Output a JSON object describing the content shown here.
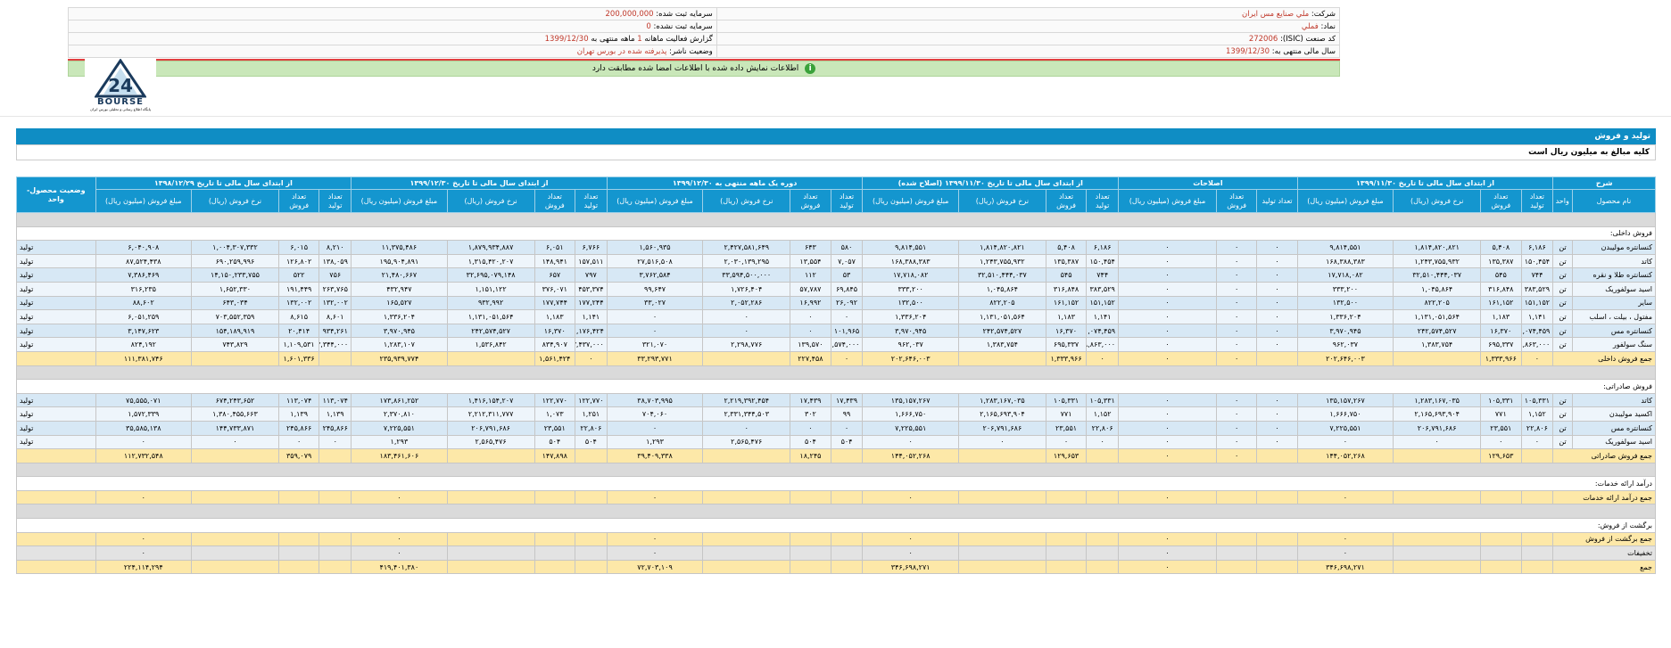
{
  "header": {
    "company_label": "شرکت:",
    "company_value": "ملي صنايع مس ايران",
    "capital_reg_label": "سرمایه ثبت شده:",
    "capital_reg_value": "200,000,000",
    "capital_unreg_label": "سرمایه ثبت نشده:",
    "capital_unreg_value": "0",
    "status_label": "وضعیت ناشر:",
    "status_value": "پذیرفته شده در بورس تهران",
    "isic_label": "کد صنعت (ISIC):",
    "isic_value": "272006",
    "report_label_a": "گزارش فعالیت ماهانه",
    "report_period": "1",
    "report_label_b": "ماهه منتهی به",
    "report_date": "1399/12/30",
    "symbol_label": "نماد:",
    "symbol_value": "فملي",
    "fiscal_label": "سال مالی منتهی به:",
    "fiscal_value": "1399/12/30"
  },
  "notice": {
    "text": "اطلاعات نمایش داده شده با اطلاعات امضا شده مطابقت دارد"
  },
  "logo": {
    "brand": "BOURSE",
    "tagline": "پایگاه اطلاع رسانی و تحلیلی بورس ایران",
    "mark": "24"
  },
  "section_title": "تولید و فروش",
  "amount_note": "کلیه مبالغ به میلیون ریال است",
  "table": {
    "col_desc": "شرح",
    "col_name": "نام محصول",
    "col_unit": "واحد",
    "col_status": "وضعیت محصول-واحد",
    "groups": [
      "از ابتدای سال مالی تا تاریخ ۱۳۹۹/۱۱/۳۰",
      "اصلاحات",
      "از ابتدای سال مالی تا تاریخ ۱۳۹۹/۱۱/۳۰ (اصلاح شده)",
      "دوره یک ماهه منتهی به ۱۳۹۹/۱۲/۳۰",
      "از ابتدای سال مالی تا تاریخ ۱۳۹۹/۱۲/۳۰",
      "از ابتدای سال مالی تا تاریخ ۱۳۹۸/۱۲/۲۹"
    ],
    "sub4": [
      "تعداد تولید",
      "تعداد فروش",
      "نرخ فروش (ریال)",
      "مبلغ فروش (میلیون ریال)"
    ],
    "sub3": [
      "تعداد تولید",
      "تعداد فروش",
      "مبلغ فروش (میلیون ریال)"
    ],
    "sec_domestic": "فروش داخلی:",
    "domestic": [
      {
        "name": "کنسانتره مولیبدن",
        "unit": "تن",
        "v": [
          "۶,۱۸۶",
          "۵,۴۰۸",
          "۱,۸۱۴,۸۲۰,۸۲۱",
          "۹,۸۱۴,۵۵۱",
          "۰",
          "۰",
          "۰",
          "۶,۱۸۶",
          "۵,۴۰۸",
          "۱,۸۱۴,۸۲۰,۸۲۱",
          "۹,۸۱۴,۵۵۱",
          "۵۸۰",
          "۶۴۳",
          "۲,۴۲۷,۵۸۱,۶۴۹",
          "۱,۵۶۰,۹۳۵",
          "۶,۷۶۶",
          "۶,۰۵۱",
          "۱,۸۷۹,۹۳۴,۸۸۷",
          "۱۱,۳۷۵,۴۸۶",
          "۸,۲۱۰",
          "۶,۰۱۵",
          "۱,۰۰۴,۳۰۷,۳۳۲",
          "۶,۰۴۰,۹۰۸"
        ],
        "status": "تولید"
      },
      {
        "name": "کاتد",
        "unit": "تن",
        "v": [
          "۱۵۰,۴۵۴",
          "۱۳۵,۳۸۷",
          "۱,۲۴۳,۷۵۵,۹۳۲",
          "۱۶۸,۳۸۸,۳۸۳",
          "۰",
          "۰",
          "۰",
          "۱۵۰,۴۵۴",
          "۱۳۵,۳۸۷",
          "۱,۲۴۳,۷۵۵,۹۳۲",
          "۱۶۸,۳۸۸,۳۸۳",
          "۷,۰۵۷",
          "۱۳,۵۵۴",
          "۲,۰۳۰,۱۳۹,۲۹۵",
          "۲۷,۵۱۶,۵۰۸",
          "۱۵۷,۵۱۱",
          "۱۴۸,۹۴۱",
          "۱,۳۱۵,۴۲۰,۲۰۷",
          "۱۹۵,۹۰۴,۸۹۱",
          "۱۳۸,۰۵۹",
          "۱۲۶,۸۰۲",
          "۶۹۰,۲۵۹,۹۹۶",
          "۸۷,۵۲۴,۴۳۸"
        ],
        "status": "تولید"
      },
      {
        "name": "کنسانتره طلا و نقره",
        "unit": "تن",
        "v": [
          "۷۴۴",
          "۵۴۵",
          "۳۲,۵۱۰,۴۴۴,۰۳۷",
          "۱۷,۷۱۸,۰۸۲",
          "۰",
          "۰",
          "۰",
          "۷۴۴",
          "۵۴۵",
          "۳۲,۵۱۰,۴۴۴,۰۳۷",
          "۱۷,۷۱۸,۰۸۲",
          "۵۳",
          "۱۱۲",
          "۳۳,۵۹۴,۵۰۰,۰۰۰",
          "۳,۷۶۲,۵۸۴",
          "۷۹۷",
          "۶۵۷",
          "۳۲,۶۹۵,۰۷۹,۱۴۸",
          "۲۱,۴۸۰,۶۶۷",
          "۷۵۶",
          "۵۲۲",
          "۱۴,۱۵۰,۲۳۳,۷۵۵",
          "۷,۳۸۶,۴۶۹"
        ],
        "status": "تولید"
      },
      {
        "name": "اسید سولفوریک",
        "unit": "تن",
        "v": [
          "۳۸۳,۵۲۹",
          "۳۱۶,۸۴۸",
          "۱,۰۴۵,۸۶۴",
          "۳۳۳,۲۰۰",
          "۰",
          "۰",
          "۰",
          "۳۸۳,۵۲۹",
          "۳۱۶,۸۴۸",
          "۱,۰۴۵,۸۶۴",
          "۳۳۳,۲۰۰",
          "۶۹,۸۴۵",
          "۵۷,۷۸۷",
          "۱,۷۲۶,۴۰۴",
          "۹۹,۶۴۷",
          "۴۵۳,۳۷۴",
          "۳۷۶,۰۷۱",
          "۱,۱۵۱,۱۲۲",
          "۴۳۲,۹۴۷",
          "۲۶۳,۷۶۵",
          "۱۹۱,۴۴۹",
          "۱,۶۵۲,۳۳۰",
          "۳۱۶,۲۳۵"
        ],
        "status": "تولید"
      },
      {
        "name": "سایر",
        "unit": "تن",
        "v": [
          "۱۵۱,۱۵۲",
          "۱۶۱,۱۵۲",
          "۸۲۲,۲۰۵",
          "۱۳۲,۵۰۰",
          "۰",
          "۰",
          "۰",
          "۱۵۱,۱۵۲",
          "۱۶۱,۱۵۲",
          "۸۲۲,۲۰۵",
          "۱۳۲,۵۰۰",
          "۲۶,۰۹۲",
          "۱۶,۹۹۲",
          "۲,۰۵۲,۲۸۶",
          "۳۳,۰۲۷",
          "۱۷۷,۲۴۴",
          "۱۷۷,۷۴۴",
          "۹۳۲,۹۹۲",
          "۱۶۵,۵۲۷",
          "۱۳۲,۰۰۲",
          "۱۳۲,۰۰۲",
          "۶۴۳,۰۳۴",
          "۸۸,۶۰۲"
        ],
        "status": "تولید"
      },
      {
        "name": "مفتول ، بیلت ، اسلب",
        "unit": "تن",
        "v": [
          "۱,۱۴۱",
          "۱,۱۸۳",
          "۱,۱۳۱,۰۵۱,۵۶۴",
          "۱,۳۳۶,۲۰۴",
          "۰",
          "۰",
          "۰",
          "۱,۱۴۱",
          "۱,۱۸۳",
          "۱,۱۳۱,۰۵۱,۵۶۴",
          "۱,۳۳۶,۲۰۴",
          "۰",
          "۰",
          "۰",
          "۰",
          "۱,۱۴۱",
          "۱,۱۸۳",
          "۱,۱۳۱,۰۵۱,۵۶۴",
          "۱,۳۳۶,۲۰۴",
          "۸,۶۰۱",
          "۸,۶۱۵",
          "۷۰۳,۵۵۲,۳۵۹",
          "۶,۰۵۱,۲۵۹"
        ],
        "status": "تولید"
      },
      {
        "name": "کنسانتره مس",
        "unit": "تن",
        "v": [
          "۱,۰۷۴,۴۵۹",
          "۱۶,۳۷۰",
          "۲۴۲,۵۷۴,۵۲۷",
          "۳,۹۷۰,۹۴۵",
          "۰",
          "۰",
          "۰",
          "۱,۰۷۴,۴۵۹",
          "۱۶,۳۷۰",
          "۲۴۲,۵۷۴,۵۲۷",
          "۳,۹۷۰,۹۴۵",
          "۱۰۱,۹۶۵",
          "۰",
          "۰",
          "۰",
          "۱,۱۷۶,۴۲۴",
          "۱۶,۳۷۰",
          "۲۴۲,۵۷۴,۵۲۷",
          "۳,۹۷۰,۹۴۵",
          "۹۳۴,۲۶۱",
          "۲۰,۴۱۴",
          "۱۵۴,۱۸۹,۹۱۹",
          "۳,۱۴۷,۶۲۳"
        ],
        "status": "تولید"
      },
      {
        "name": "سنگ سولفور",
        "unit": "تن",
        "v": [
          "۴۸,۸۶۳,۰۰۰",
          "۶۹۵,۳۳۷",
          "۱,۳۸۳,۷۵۴",
          "۹۶۲,۰۳۷",
          "۰",
          "۰",
          "۰",
          "۴۸,۸۶۳,۰۰۰",
          "۶۹۵,۳۳۷",
          "۱,۳۸۳,۷۵۴",
          "۹۶۲,۰۳۷",
          "۴,۵۷۴,۰۰۰",
          "۱۳۹,۵۷۰",
          "۲,۲۹۸,۷۷۶",
          "۳۲۱,۰۷۰",
          "۵۳,۴۳۷,۰۰۰",
          "۸۳۴,۹۰۷",
          "۱,۵۳۶,۸۴۲",
          "۱,۲۸۳,۱۰۷",
          "۵۳,۳۴۴,۰۰۰",
          "۱,۱۰۹,۵۳۱",
          "۷۴۳,۸۲۹",
          "۸۲۴,۱۹۲"
        ],
        "status": "تولید"
      }
    ],
    "tot_domestic": {
      "label": "جمع فروش داخلی",
      "v": [
        "۰",
        "۱,۳۳۳,۹۶۶",
        "",
        "۲۰۲,۶۴۶,۰۰۳",
        "",
        "۰",
        "۰",
        "۰",
        "۱,۳۳۳,۹۶۶",
        "",
        "۲۰۲,۶۴۶,۰۰۳",
        "۰",
        "۲۲۷,۴۵۸",
        "",
        "۳۳,۲۹۳,۷۷۱",
        "۰",
        "۱,۵۶۱,۴۲۴",
        "",
        "۲۳۵,۹۳۹,۷۷۴",
        "",
        "۱,۶۰۱,۳۳۶",
        "",
        "۱۱۱,۳۸۱,۷۴۶"
      ]
    },
    "sec_export": "فروش صادراتی:",
    "export": [
      {
        "name": "کاتد",
        "unit": "تن",
        "v": [
          "۱۰۵,۳۳۱",
          "۱۰۵,۳۳۱",
          "۱,۲۸۳,۱۶۷,۰۳۵",
          "۱۳۵,۱۵۷,۲۶۷",
          "۰",
          "۰",
          "۰",
          "۱۰۵,۳۳۱",
          "۱۰۵,۳۳۱",
          "۱,۲۸۳,۱۶۷,۰۳۵",
          "۱۳۵,۱۵۷,۲۶۷",
          "۱۷,۴۳۹",
          "۱۷,۴۳۹",
          "۲,۲۱۹,۳۹۲,۴۵۴",
          "۳۸,۷۰۳,۹۹۵",
          "۱۲۲,۷۷۰",
          "۱۲۲,۷۷۰",
          "۱,۴۱۶,۱۵۴,۲۰۷",
          "۱۷۳,۸۶۱,۲۵۲",
          "۱۱۳,۰۷۴",
          "۱۱۳,۰۷۴",
          "۶۷۴,۲۴۳,۶۵۲",
          "۷۵,۵۵۵,۰۷۱"
        ],
        "status": "تولید"
      },
      {
        "name": "اکسید مولیبدن",
        "unit": "تن",
        "v": [
          "۱,۱۵۲",
          "۷۷۱",
          "۲,۱۶۵,۶۹۳,۹۰۴",
          "۱,۶۶۶,۷۵۰",
          "۰",
          "۰",
          "۰",
          "۱,۱۵۲",
          "۷۷۱",
          "۲,۱۶۵,۶۹۳,۹۰۴",
          "۱,۶۶۶,۷۵۰",
          "۹۹",
          "۳۰۲",
          "۲,۳۳۱,۳۴۴,۵۰۳",
          "۷۰۴,۰۶۰",
          "۱,۲۵۱",
          "۱,۰۷۳",
          "۲,۲۱۲,۳۱۱,۷۷۷",
          "۲,۳۷۰,۸۱۰",
          "۱,۱۳۹",
          "۱,۱۳۹",
          "۱,۳۸۰,۴۵۵,۶۶۳",
          "۱,۵۷۲,۳۳۹"
        ],
        "status": "تولید"
      },
      {
        "name": "کنسانتره مس",
        "unit": "تن",
        "v": [
          "۲۲,۸۰۶",
          "۲۳,۵۵۱",
          "۲۰۶,۷۹۱,۶۸۶",
          "۷,۲۲۵,۵۵۱",
          "۰",
          "۰",
          "۰",
          "۲۲,۸۰۶",
          "۲۳,۵۵۱",
          "۲۰۶,۷۹۱,۶۸۶",
          "۷,۲۲۵,۵۵۱",
          "۰",
          "۰",
          "۰",
          "۰",
          "۲۲,۸۰۶",
          "۲۳,۵۵۱",
          "۲۰۶,۷۹۱,۶۸۶",
          "۷,۲۲۵,۵۵۱",
          "۲۴۵,۸۶۶",
          "۲۴۵,۸۶۶",
          "۱۴۴,۷۳۳,۸۷۱",
          "۳۵,۵۸۵,۱۳۸"
        ],
        "status": "تولید"
      },
      {
        "name": "اسید سولفوریک",
        "unit": "تن",
        "v": [
          "۰",
          "۰",
          "۰",
          "۰",
          "۰",
          "۰",
          "۰",
          "۰",
          "۰",
          "۰",
          "۰",
          "۵۰۴",
          "۵۰۴",
          "۲,۵۶۵,۴۷۶",
          "۱,۲۹۳",
          "۵۰۴",
          "۵۰۴",
          "۲,۵۶۵,۴۷۶",
          "۱,۲۹۳",
          "۰",
          "۰",
          "۰",
          "۰"
        ],
        "status": "تولید"
      }
    ],
    "tot_export": {
      "label": "جمع فروش صادراتی",
      "v": [
        "",
        "۱۲۹,۶۵۳",
        "",
        "۱۴۴,۰۵۲,۲۶۸",
        "",
        "۰",
        "۰",
        "",
        "۱۲۹,۶۵۳",
        "",
        "۱۴۴,۰۵۲,۲۶۸",
        "",
        "۱۸,۲۴۵",
        "",
        "۳۹,۴۰۹,۳۳۸",
        "",
        "۱۴۷,۸۹۸",
        "",
        "۱۸۳,۴۶۱,۶۰۶",
        "",
        "۳۵۹,۰۷۹",
        "",
        "۱۱۲,۷۳۲,۵۴۸"
      ]
    },
    "sec_services": "درآمد ارائه خدمات:",
    "tot_services": {
      "label": "جمع درآمد ارائه خدمات",
      "v": [
        "",
        "",
        "",
        "۰",
        "",
        "",
        "۰",
        "",
        "",
        "",
        "۰",
        "",
        "",
        "",
        "۰",
        "",
        "",
        "",
        "۰",
        "",
        "",
        "",
        "۰"
      ]
    },
    "sec_returns": "برگشت از فروش:",
    "tot_returns": {
      "label": "جمع برگشت از فروش",
      "v": [
        "",
        "",
        "",
        "۰",
        "",
        "",
        "۰",
        "",
        "",
        "",
        "۰",
        "",
        "",
        "",
        "۰",
        "",
        "",
        "",
        "۰",
        "",
        "",
        "",
        "۰"
      ]
    },
    "discounts": {
      "label": "تخفیفات",
      "v": [
        "",
        "",
        "",
        "۰",
        "",
        "",
        "۰",
        "",
        "",
        "",
        "۰",
        "",
        "",
        "",
        "۰",
        "",
        "",
        "",
        "۰",
        "",
        "",
        "",
        "۰"
      ]
    },
    "grand": {
      "label": "جمع",
      "v": [
        "",
        "",
        "",
        "۳۴۶,۶۹۸,۲۷۱",
        "",
        "",
        "۰",
        "",
        "",
        "",
        "۳۴۶,۶۹۸,۲۷۱",
        "",
        "",
        "",
        "۷۲,۷۰۳,۱۰۹",
        "",
        "",
        "",
        "۴۱۹,۴۰۱,۳۸۰",
        "",
        "",
        "",
        "۲۲۴,۱۱۴,۲۹۴"
      ]
    }
  },
  "colors": {
    "header_blue": "#1496cf",
    "title_blue": "#0f8dc4",
    "total_row": "#fde8a8",
    "notice_green": "#c9e7b9",
    "accent_red": "#c0392b"
  }
}
